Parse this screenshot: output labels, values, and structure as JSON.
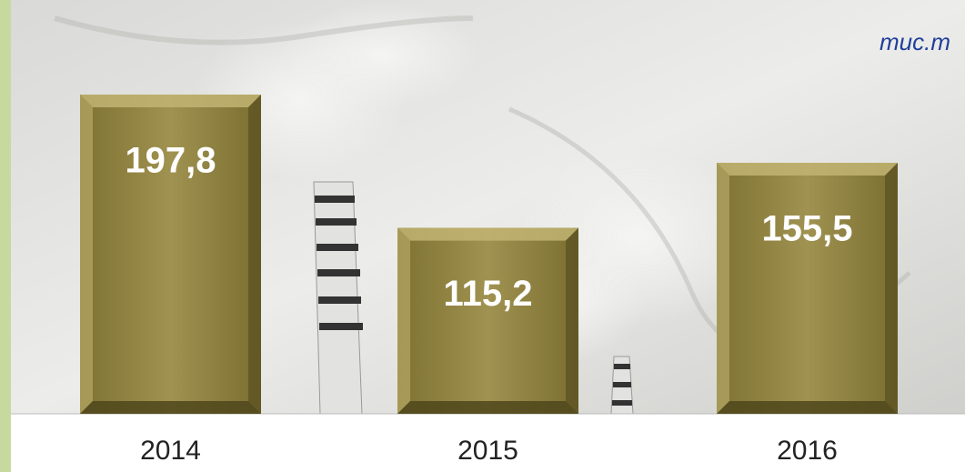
{
  "chart_data": {
    "type": "bar",
    "unit_label": "muc.m",
    "categories": [
      "2014",
      "2015",
      "2016"
    ],
    "values": [
      197.8,
      115.2,
      155.5
    ],
    "value_labels": [
      "197,8",
      "115,2",
      "155,5"
    ],
    "color": "#948742"
  }
}
